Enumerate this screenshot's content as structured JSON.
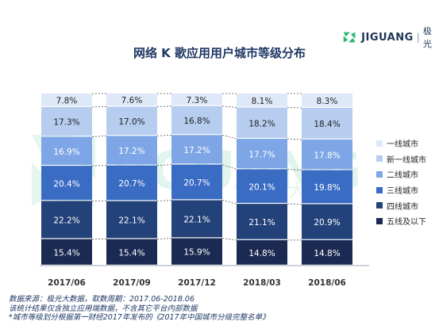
{
  "brand": {
    "name": "JIGUANG",
    "cn": "极光",
    "sep": "|",
    "watermark": "JIGUANG",
    "watermark_cn": "极 光 大 数"
  },
  "title": "网络 K 歌应用用户城市等级分布",
  "chart_data": {
    "type": "bar",
    "stacked": true,
    "percent": true,
    "title": "网络 K 歌应用用户城市等级分布",
    "categories": [
      "2017/06",
      "2017/09",
      "2017/12",
      "2018/03",
      "2018/06"
    ],
    "ylim": [
      0,
      100
    ],
    "legend_position": "right",
    "series": [
      {
        "name": "五线及以下",
        "color": "#1b2a52",
        "values": [
          15.4,
          15.4,
          15.9,
          14.8,
          14.8
        ]
      },
      {
        "name": "四线城市",
        "color": "#24427a",
        "values": [
          22.2,
          22.1,
          22.1,
          21.1,
          20.9
        ]
      },
      {
        "name": "三线城市",
        "color": "#3b6cc4",
        "values": [
          20.4,
          20.7,
          20.7,
          20.1,
          19.8
        ]
      },
      {
        "name": "二线城市",
        "color": "#7ea6e6",
        "values": [
          16.9,
          17.2,
          17.2,
          17.7,
          17.8
        ]
      },
      {
        "name": "新一线城市",
        "color": "#b6cdf0",
        "values": [
          17.3,
          17.0,
          16.8,
          18.2,
          18.4
        ]
      },
      {
        "name": "一线城市",
        "color": "#dde8f8",
        "values": [
          7.8,
          7.6,
          7.3,
          8.1,
          8.3
        ]
      }
    ],
    "labels": [
      [
        "15.4%",
        "15.4%",
        "15.9%",
        "14.8%",
        "14.8%"
      ],
      [
        "22.2%",
        "22.1%",
        "22.1%",
        "21.1%",
        "20.9%"
      ],
      [
        "20.4%",
        "20.7%",
        "20.7%",
        "20.1%",
        "19.8%"
      ],
      [
        "16.9%",
        "17.2%",
        "17.2%",
        "17.7%",
        "17.8%"
      ],
      [
        "17.3%",
        "17.0%",
        "16.8%",
        "18.2%",
        "18.4%"
      ],
      [
        "7.8%",
        "7.6%",
        "7.3%",
        "8.1%",
        "8.3%"
      ]
    ],
    "label_colors": [
      "#ffffff",
      "#ffffff",
      "#ffffff",
      "#ffffff",
      "#222222",
      "#222222"
    ],
    "legend_order": [
      "一线城市",
      "新一线城市",
      "二线城市",
      "三线城市",
      "四线城市",
      "五线及以下"
    ]
  },
  "footnote": {
    "line1": "数据来源：极光大数据，取数周期：2017.06-2018.06",
    "line2": "该统计结果仅含独立应用端数据，不含其它平台内部数据",
    "line3": "*城市等级划分根据第一财经2017年发布的《2017年中国城市分级完整名单》"
  }
}
